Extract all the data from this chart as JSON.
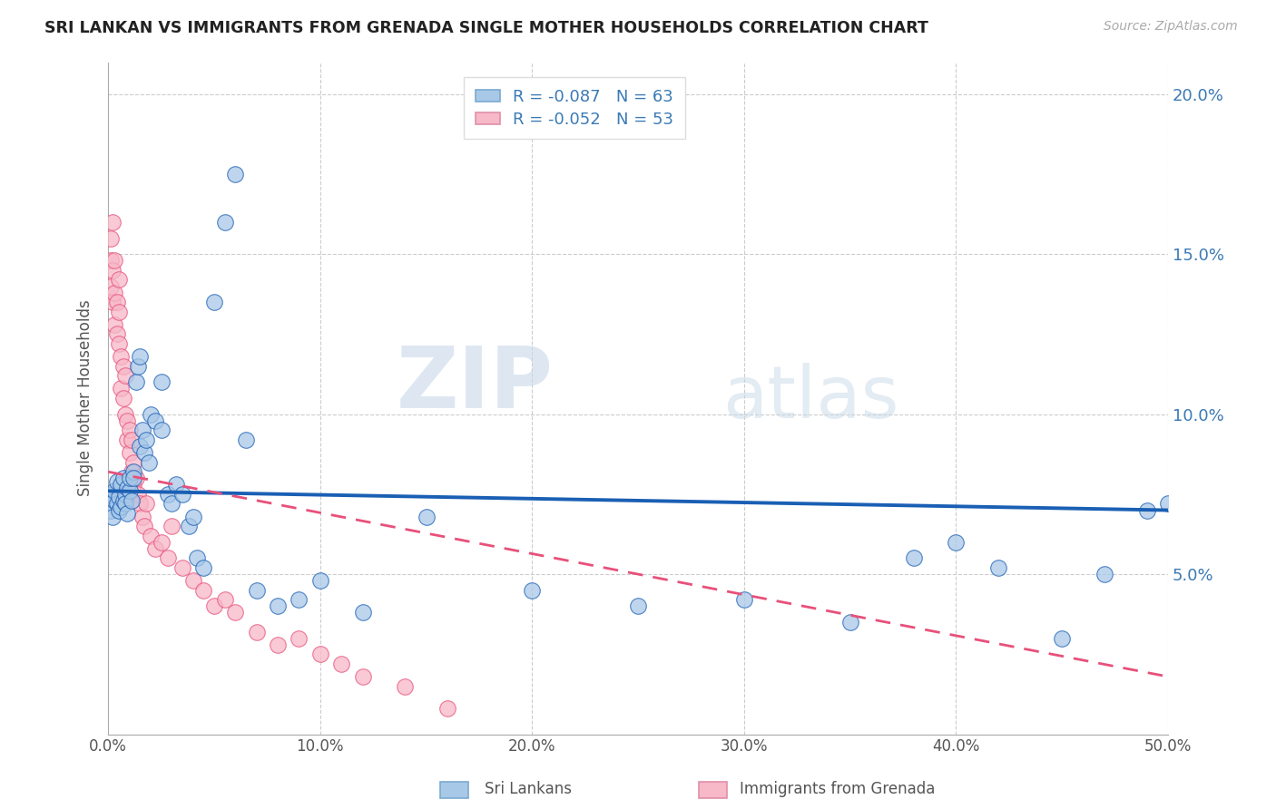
{
  "title": "SRI LANKAN VS IMMIGRANTS FROM GRENADA SINGLE MOTHER HOUSEHOLDS CORRELATION CHART",
  "source": "Source: ZipAtlas.com",
  "xlabel_sri": "Sri Lankans",
  "xlabel_gren": "Immigrants from Grenada",
  "ylabel": "Single Mother Households",
  "r_sri": -0.087,
  "n_sri": 63,
  "r_gren": -0.052,
  "n_gren": 53,
  "color_sri": "#a8c8e8",
  "color_gren": "#f7b8c8",
  "trendline_sri_color": "#1a5fb4",
  "trendline_gren_color": "#e8507a",
  "watermark_zip": "ZIP",
  "watermark_atlas": "atlas",
  "xlim": [
    0.0,
    0.5
  ],
  "ylim": [
    0.0,
    0.21
  ],
  "xticks": [
    0.0,
    0.1,
    0.2,
    0.3,
    0.4,
    0.5
  ],
  "yticks": [
    0.05,
    0.1,
    0.15,
    0.2
  ],
  "sri_x": [
    0.001,
    0.002,
    0.002,
    0.003,
    0.003,
    0.004,
    0.004,
    0.005,
    0.005,
    0.006,
    0.006,
    0.007,
    0.007,
    0.008,
    0.008,
    0.009,
    0.009,
    0.01,
    0.01,
    0.011,
    0.012,
    0.012,
    0.013,
    0.014,
    0.015,
    0.015,
    0.016,
    0.017,
    0.018,
    0.019,
    0.02,
    0.022,
    0.025,
    0.025,
    0.028,
    0.03,
    0.032,
    0.035,
    0.038,
    0.04,
    0.042,
    0.045,
    0.05,
    0.055,
    0.06,
    0.065,
    0.07,
    0.08,
    0.09,
    0.1,
    0.12,
    0.15,
    0.2,
    0.25,
    0.3,
    0.35,
    0.38,
    0.4,
    0.42,
    0.45,
    0.47,
    0.49,
    0.5
  ],
  "sri_y": [
    0.07,
    0.075,
    0.068,
    0.073,
    0.076,
    0.072,
    0.079,
    0.07,
    0.074,
    0.071,
    0.078,
    0.073,
    0.08,
    0.075,
    0.072,
    0.077,
    0.069,
    0.076,
    0.08,
    0.073,
    0.082,
    0.08,
    0.11,
    0.115,
    0.118,
    0.09,
    0.095,
    0.088,
    0.092,
    0.085,
    0.1,
    0.098,
    0.11,
    0.095,
    0.075,
    0.072,
    0.078,
    0.075,
    0.065,
    0.068,
    0.055,
    0.052,
    0.135,
    0.16,
    0.175,
    0.092,
    0.045,
    0.04,
    0.042,
    0.048,
    0.038,
    0.068,
    0.045,
    0.04,
    0.042,
    0.035,
    0.055,
    0.06,
    0.052,
    0.03,
    0.05,
    0.07,
    0.072
  ],
  "gren_x": [
    0.001,
    0.001,
    0.001,
    0.002,
    0.002,
    0.002,
    0.003,
    0.003,
    0.003,
    0.004,
    0.004,
    0.005,
    0.005,
    0.005,
    0.006,
    0.006,
    0.007,
    0.007,
    0.008,
    0.008,
    0.009,
    0.009,
    0.01,
    0.01,
    0.011,
    0.011,
    0.012,
    0.012,
    0.013,
    0.014,
    0.015,
    0.016,
    0.017,
    0.018,
    0.02,
    0.022,
    0.025,
    0.028,
    0.03,
    0.035,
    0.04,
    0.045,
    0.05,
    0.055,
    0.06,
    0.07,
    0.08,
    0.09,
    0.1,
    0.11,
    0.12,
    0.14,
    0.16
  ],
  "gren_y": [
    0.155,
    0.148,
    0.14,
    0.16,
    0.145,
    0.135,
    0.148,
    0.138,
    0.128,
    0.135,
    0.125,
    0.142,
    0.132,
    0.122,
    0.118,
    0.108,
    0.115,
    0.105,
    0.112,
    0.1,
    0.098,
    0.092,
    0.095,
    0.088,
    0.092,
    0.082,
    0.085,
    0.078,
    0.08,
    0.075,
    0.072,
    0.068,
    0.065,
    0.072,
    0.062,
    0.058,
    0.06,
    0.055,
    0.065,
    0.052,
    0.048,
    0.045,
    0.04,
    0.042,
    0.038,
    0.032,
    0.028,
    0.03,
    0.025,
    0.022,
    0.018,
    0.015,
    0.008
  ],
  "trend_sri_x0": 0.0,
  "trend_sri_x1": 0.5,
  "trend_sri_y0": 0.076,
  "trend_sri_y1": 0.07,
  "trend_gren_x0": 0.0,
  "trend_gren_x1": 0.5,
  "trend_gren_y0": 0.082,
  "trend_gren_y1": 0.018
}
